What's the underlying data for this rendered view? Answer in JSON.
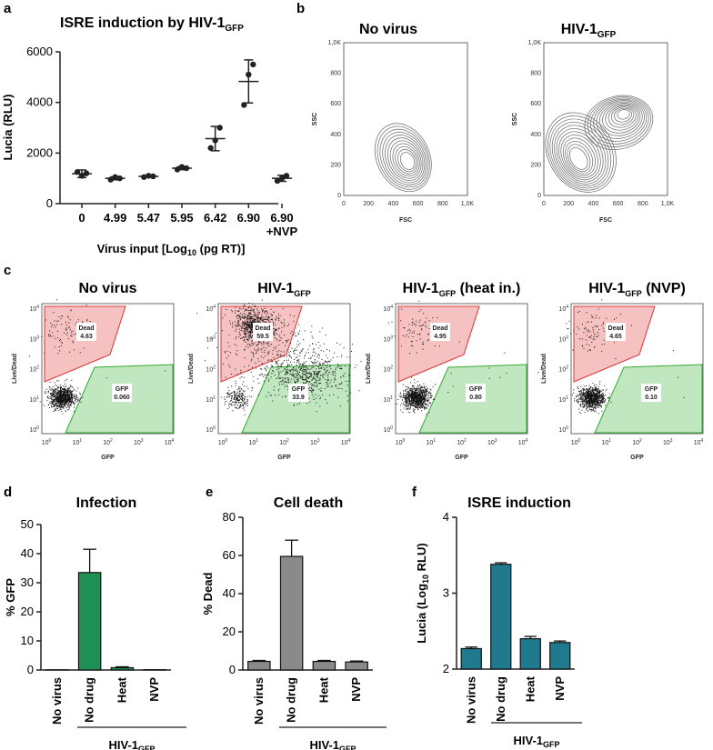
{
  "panels": {
    "a": {
      "letter": "a"
    },
    "b": {
      "letter": "b"
    },
    "c": {
      "letter": "c"
    },
    "d": {
      "letter": "d"
    },
    "e": {
      "letter": "e"
    },
    "f": {
      "letter": "f"
    }
  },
  "chart_data": [
    {
      "id": "a",
      "type": "scatter",
      "title": "ISRE induction by HIV-1",
      "title_sub": "GFP",
      "ylabel": "Lucia (RLU)",
      "xlabel": "Virus input [Log",
      "xlabel_sub": "10",
      "xlabel_tail": " (pg RT)]",
      "ylim": [
        0,
        6000
      ],
      "yticks": [
        "0",
        "2000",
        "4000",
        "6000"
      ],
      "ytick_values": [
        0,
        2000,
        4000,
        6000
      ],
      "categories": [
        "0",
        "4.99",
        "5.47",
        "5.95",
        "6.42",
        "6.90",
        "6.90"
      ],
      "category_line2": [
        "",
        "",
        "",
        "",
        "",
        "",
        "+NVP"
      ],
      "points": [
        [
          1250,
          1100,
          1200
        ],
        [
          950,
          1050,
          1000
        ],
        [
          1050,
          1100,
          1080
        ],
        [
          1350,
          1450,
          1400
        ],
        [
          2200,
          2500,
          3000
        ],
        [
          3900,
          5100,
          5500
        ],
        [
          900,
          1000,
          1100
        ]
      ],
      "means": [
        1180,
        1000,
        1080,
        1400,
        2570,
        4830,
        1000
      ],
      "sds": [
        150,
        60,
        30,
        60,
        480,
        850,
        120
      ],
      "color": "#222222"
    },
    {
      "id": "b",
      "type": "contour",
      "plots": [
        {
          "title": "No virus",
          "title_sub": ""
        },
        {
          "title": "HIV-1",
          "title_sub": "GFP"
        }
      ],
      "xlabel": "FSC",
      "ylabel": "SSC",
      "xticks": [
        "0",
        "200",
        "400",
        "600",
        "800",
        "1,0K"
      ],
      "yticks": [
        "0",
        "200",
        "400",
        "600",
        "800",
        "1,0K"
      ]
    },
    {
      "id": "c",
      "type": "scatter",
      "plots": [
        {
          "title": "No virus",
          "title_sub": "",
          "title_tail": "",
          "dead": "4.63",
          "gfp": "0.060"
        },
        {
          "title": "HIV-1",
          "title_sub": "GFP",
          "title_tail": "",
          "dead": "59.5",
          "gfp": "33.9"
        },
        {
          "title": "HIV-1",
          "title_sub": "GFP",
          "title_tail": " (heat in.)",
          "dead": "4.95",
          "gfp": "0.80"
        },
        {
          "title": "HIV-1",
          "title_sub": "GFP",
          "title_tail": " (NVP)",
          "dead": "4.65",
          "gfp": "0.10"
        }
      ],
      "dead_label": "Dead",
      "gfp_label": "GFP",
      "xlabel": "GFP",
      "ylabel": "Live/Dead",
      "ticks": [
        "0",
        "1",
        "2",
        "3",
        "4"
      ],
      "tick_base": "10",
      "dead_gate_color": "#f4b6b6",
      "gfp_gate_color": "#b5e3b5"
    },
    {
      "id": "d",
      "type": "bar",
      "title": "Infection",
      "ylabel": "% GFP",
      "ylim": [
        0,
        50
      ],
      "yticks": [
        "0",
        "10",
        "20",
        "30",
        "40",
        "50"
      ],
      "ytick_values": [
        0,
        10,
        20,
        30,
        40,
        50
      ],
      "categories": [
        "No virus",
        "No drug",
        "Heat",
        "NVP"
      ],
      "values": [
        0.06,
        33.5,
        0.8,
        0.1
      ],
      "errors": [
        0,
        8,
        0.3,
        0
      ],
      "group_label": "HIV-1",
      "group_sub": "GFP",
      "color": "#1e9055"
    },
    {
      "id": "e",
      "type": "bar",
      "title": "Cell death",
      "ylabel": "% Dead",
      "ylim": [
        0,
        80
      ],
      "yticks": [
        "0",
        "20",
        "40",
        "60",
        "80"
      ],
      "ytick_values": [
        0,
        20,
        40,
        60,
        80
      ],
      "categories": [
        "No virus",
        "No drug",
        "Heat",
        "NVP"
      ],
      "values": [
        4.5,
        59.5,
        4.5,
        4.2
      ],
      "errors": [
        0.5,
        8.5,
        0.5,
        0.5
      ],
      "group_label": "HIV-1",
      "group_sub": "GFP",
      "color": "#8a8a8a"
    },
    {
      "id": "f",
      "type": "bar",
      "title": "ISRE induction",
      "ylabel": "Lucia (Log",
      "ylabel_sub": "10",
      "ylabel_tail": " RLU)",
      "ylim": [
        2,
        4
      ],
      "yticks": [
        "2",
        "3",
        "4"
      ],
      "ytick_values": [
        2,
        3,
        4
      ],
      "categories": [
        "No virus",
        "No drug",
        "Heat",
        "NVP"
      ],
      "values": [
        2.27,
        3.38,
        2.4,
        2.35
      ],
      "errors": [
        0.02,
        0.02,
        0.03,
        0.02
      ],
      "group_label": "HIV-1",
      "group_sub": "GFP",
      "color": "#1e7a8c"
    }
  ]
}
